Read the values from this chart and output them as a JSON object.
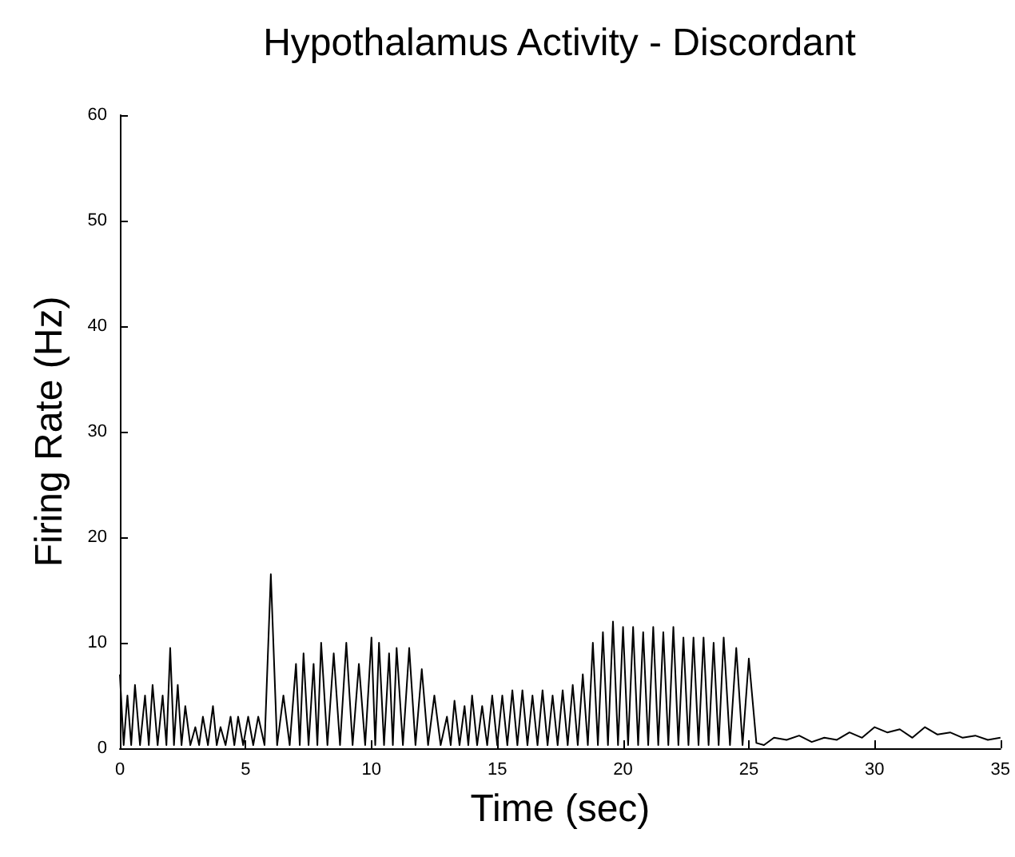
{
  "chart_data": {
    "type": "line",
    "title": "Hypothalamus Activity - Discordant",
    "xlabel": "Time (sec)",
    "ylabel": "Firing Rate (Hz)",
    "x": [
      0,
      0.15,
      0.3,
      0.45,
      0.6,
      0.8,
      1,
      1.15,
      1.3,
      1.5,
      1.7,
      1.85,
      2,
      2.15,
      2.3,
      2.45,
      2.6,
      2.8,
      3,
      3.15,
      3.3,
      3.5,
      3.7,
      3.85,
      4,
      4.2,
      4.4,
      4.55,
      4.7,
      4.9,
      5.1,
      5.3,
      5.5,
      5.75,
      6,
      6.25,
      6.5,
      6.75,
      7,
      7.15,
      7.3,
      7.5,
      7.7,
      7.85,
      8,
      8.25,
      8.5,
      8.75,
      9,
      9.25,
      9.5,
      9.75,
      10,
      10.15,
      10.3,
      10.5,
      10.7,
      10.85,
      11,
      11.25,
      11.5,
      11.75,
      12,
      12.25,
      12.5,
      12.75,
      13,
      13.15,
      13.3,
      13.5,
      13.7,
      13.85,
      14,
      14.2,
      14.4,
      14.6,
      14.8,
      15,
      15.2,
      15.4,
      15.6,
      15.8,
      16,
      16.2,
      16.4,
      16.6,
      16.8,
      17,
      17.2,
      17.4,
      17.6,
      17.8,
      18,
      18.2,
      18.4,
      18.6,
      18.8,
      19,
      19.2,
      19.4,
      19.6,
      19.8,
      20,
      20.2,
      20.4,
      20.6,
      20.8,
      21,
      21.2,
      21.4,
      21.6,
      21.8,
      22,
      22.2,
      22.4,
      22.6,
      22.8,
      23,
      23.2,
      23.4,
      23.6,
      23.8,
      24,
      24.25,
      24.5,
      24.75,
      25,
      25.3,
      25.6,
      26,
      26.5,
      27,
      27.5,
      28,
      28.5,
      29,
      29.5,
      30,
      30.5,
      31,
      31.5,
      32,
      32.5,
      33,
      33.5,
      34,
      34.5,
      35
    ],
    "series": [
      {
        "color": "#000000",
        "values": [
          7,
          0.3,
          5,
          0.3,
          6,
          0.3,
          5,
          0.3,
          6,
          0.3,
          5,
          0.3,
          9.5,
          0.3,
          6,
          0.3,
          4,
          0.3,
          2,
          0.3,
          3,
          0.3,
          4,
          0.3,
          2,
          0.3,
          3,
          0.3,
          3,
          0.3,
          3,
          0.3,
          3,
          0.3,
          16.5,
          0.3,
          5,
          0.3,
          8,
          0.3,
          9,
          0.3,
          8,
          0.3,
          10,
          0.3,
          9,
          0.3,
          10,
          0.3,
          8,
          0.3,
          10.5,
          0.3,
          10,
          0.3,
          9,
          0.3,
          9.5,
          0.3,
          9.5,
          0.3,
          7.5,
          0.3,
          5,
          0.3,
          3,
          0.3,
          4.5,
          0.3,
          4,
          0.3,
          5,
          0.3,
          4,
          0.3,
          5,
          0.3,
          5,
          0.3,
          5.5,
          0.3,
          5.5,
          0.3,
          5,
          0.3,
          5.5,
          0.3,
          5,
          0.3,
          5.5,
          0.3,
          6,
          0.3,
          7,
          0.3,
          10,
          0.3,
          11,
          0.3,
          12,
          0.3,
          11.5,
          0.3,
          11.5,
          0.3,
          11,
          0.3,
          11.5,
          0.3,
          11,
          0.3,
          11.5,
          0.3,
          10.5,
          0.3,
          10.5,
          0.3,
          10.5,
          0.3,
          10,
          0.3,
          10.5,
          0.3,
          9.5,
          0.3,
          8.5,
          0.5,
          0.3,
          1,
          0.8,
          1.2,
          0.6,
          1,
          0.8,
          1.5,
          1,
          2,
          1.5,
          1.8,
          1,
          2,
          1.3,
          1.5,
          1,
          1.2,
          0.8,
          1
        ]
      }
    ],
    "xlim": [
      0,
      35
    ],
    "xticks": [
      0,
      5,
      10,
      15,
      20,
      25,
      30,
      35
    ],
    "ylim": [
      0,
      60
    ],
    "yticks": [
      0,
      10,
      20,
      30,
      40,
      50,
      60
    ],
    "grid": false,
    "marker": "none",
    "line_style": "solid"
  }
}
